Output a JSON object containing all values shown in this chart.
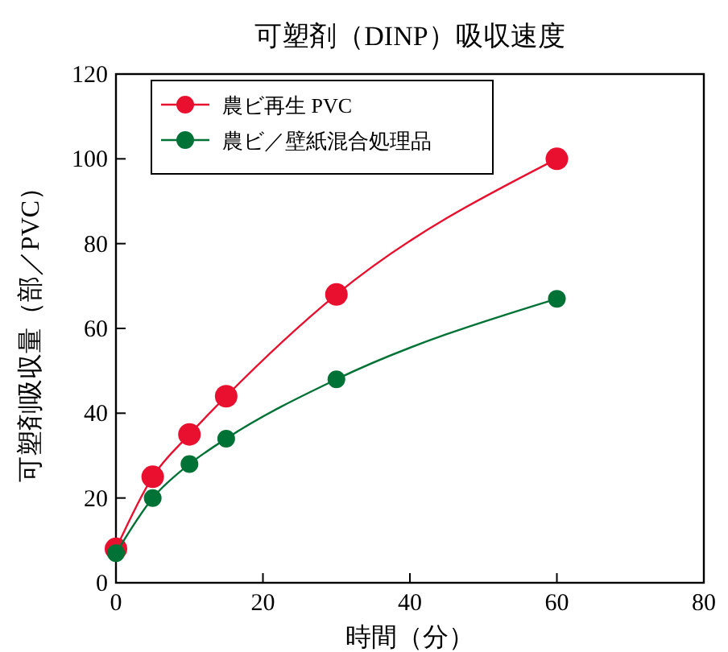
{
  "chart_data": {
    "type": "line",
    "title": "可塑剤（DINP）吸収速度",
    "xlabel": "時間（分）",
    "ylabel": "可塑剤吸収量（部／PVC）",
    "xlim": [
      0,
      80
    ],
    "xticks": [
      0,
      20,
      40,
      60,
      80
    ],
    "ylim": [
      0,
      120
    ],
    "yticks": [
      0,
      20,
      40,
      60,
      80,
      100,
      120
    ],
    "x": [
      0,
      5,
      10,
      15,
      30,
      60
    ],
    "marker": "circle",
    "legend": "top left",
    "grid": false,
    "series": [
      {
        "name": "農ビ再生 PVC",
        "color": "#e8102e",
        "values": [
          8,
          25,
          35,
          44,
          68,
          100
        ]
      },
      {
        "name": "農ビ／壁紙混合処理品",
        "color": "#007236",
        "values": [
          7,
          20,
          28,
          34,
          48,
          67
        ]
      }
    ]
  }
}
